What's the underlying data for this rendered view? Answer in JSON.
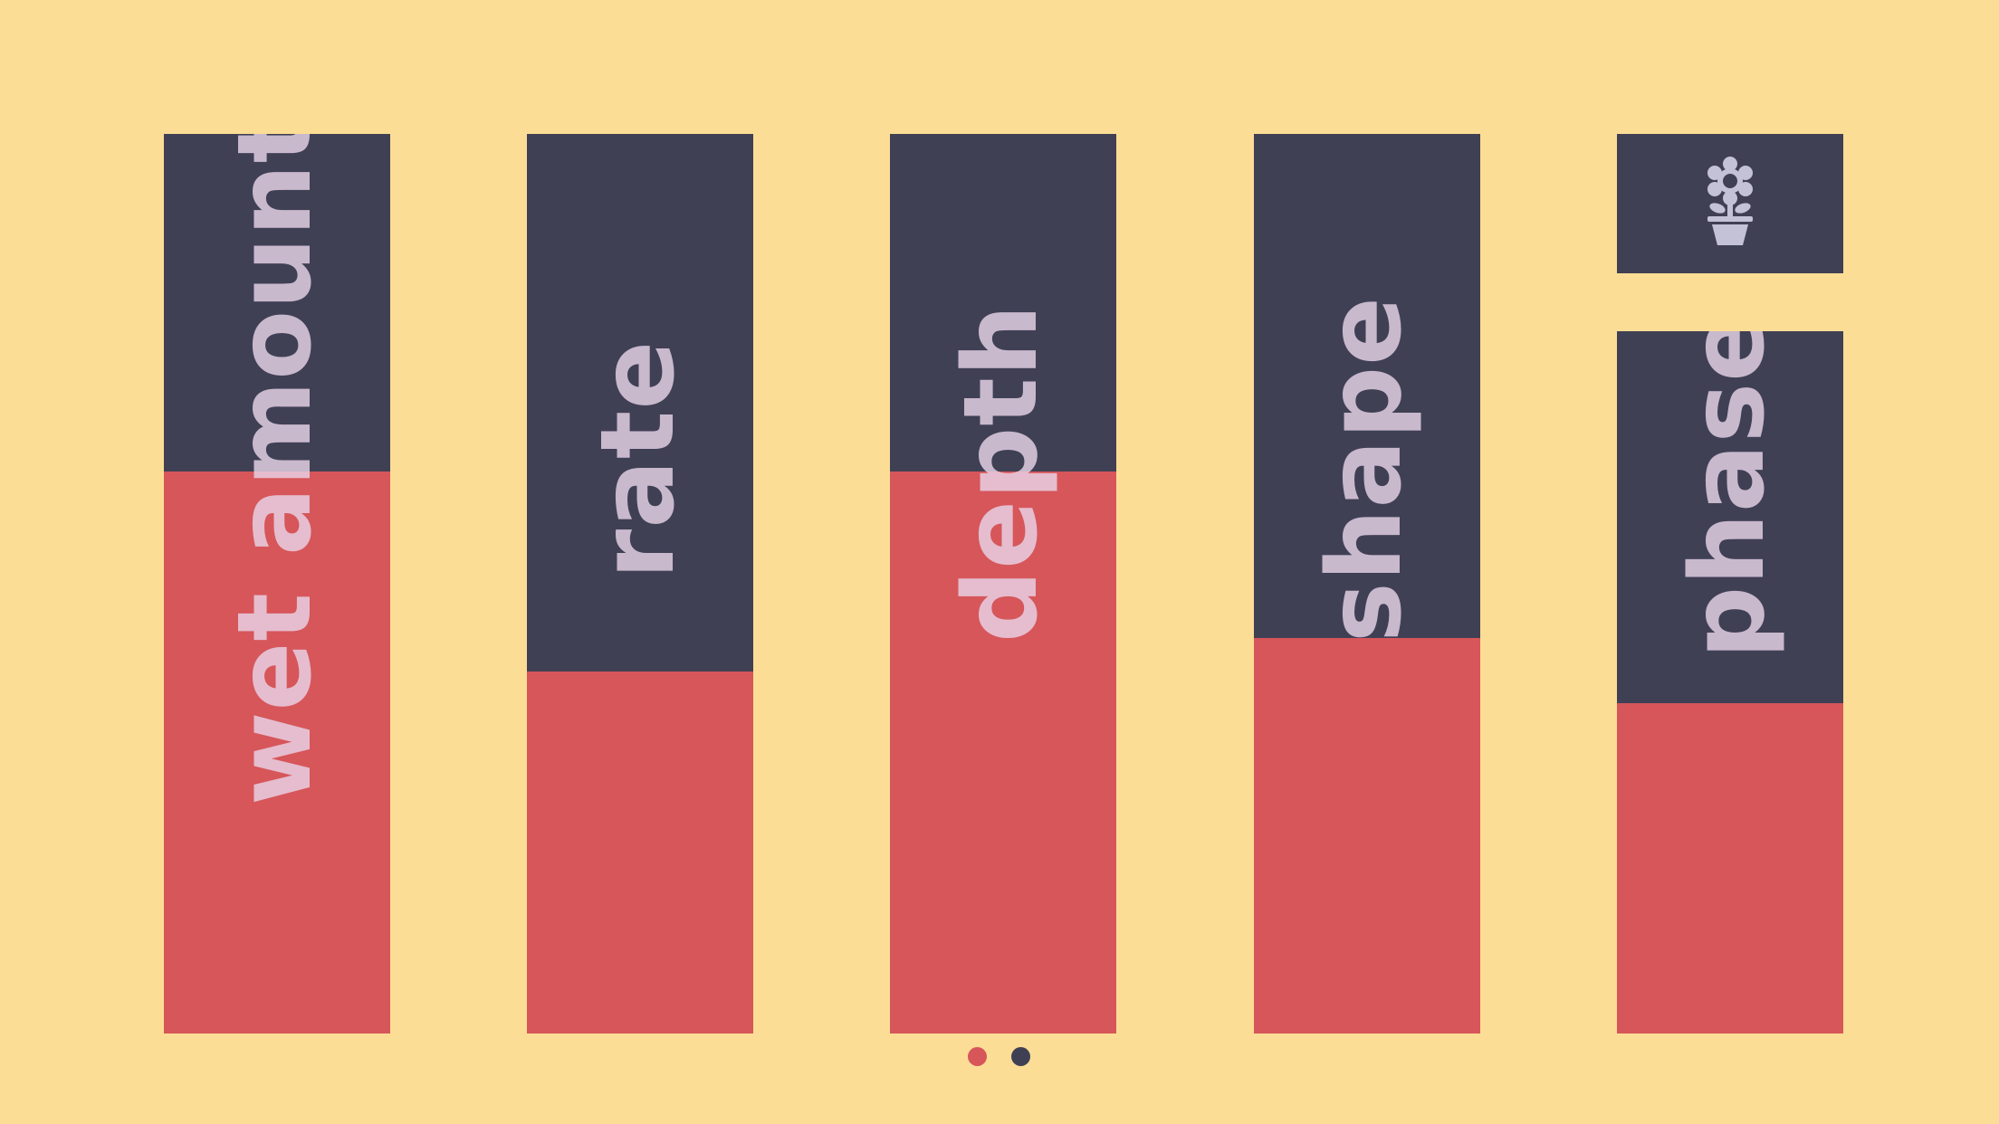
{
  "sliders": [
    {
      "label": "wet amount",
      "value": 0.625
    },
    {
      "label": "rate",
      "value": 0.402
    },
    {
      "label": "depth",
      "value": 0.625
    },
    {
      "label": "shape",
      "value": 0.44
    },
    {
      "label": "phase",
      "value": 0.47
    }
  ],
  "settings": {
    "icon": "flower-pot-icon"
  },
  "pager": {
    "pages": 2,
    "active": 0
  },
  "colors": {
    "background": "#fcdd95",
    "track": "#404055",
    "fill": "#d6565a",
    "label": "#e8d4e8",
    "dot_active": "#d6565a",
    "dot_inactive": "#404055"
  }
}
